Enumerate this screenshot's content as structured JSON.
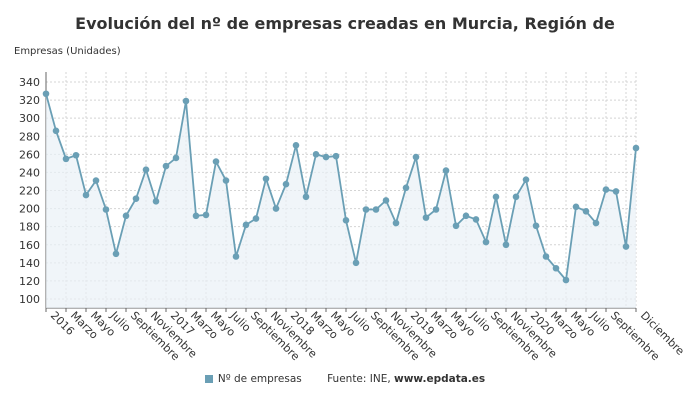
{
  "chart_data": {
    "type": "line",
    "title": "Evolución del nº de empresas creadas en Murcia, Región de",
    "ylabel": "Empresas (Unidades)",
    "xlabel": "",
    "ylim": [
      100,
      340
    ],
    "yticks": [
      100,
      120,
      140,
      160,
      180,
      200,
      220,
      240,
      260,
      280,
      300,
      320,
      340
    ],
    "grid": true,
    "legend_position": "bottom",
    "series_color": "#6a9fb5",
    "x_tick_labels": [
      "2016",
      "Marzo",
      "Mayo",
      "Julio",
      "Septiembre",
      "Noviembre",
      "2017",
      "Marzo",
      "Mayo",
      "Julio",
      "Septiembre",
      "Noviembre",
      "2018",
      "Marzo",
      "Mayo",
      "Julio",
      "Septiembre",
      "Noviembre",
      "2019",
      "Marzo",
      "Mayo",
      "Julio",
      "Septiembre",
      "Noviembre",
      "2020",
      "Marzo",
      "Mayo",
      "Julio",
      "Septiembre",
      "Diciembre"
    ],
    "series": [
      {
        "name": "Nº de empresas",
        "values": [
          327,
          286,
          255,
          259,
          215,
          231,
          199,
          150,
          192,
          211,
          243,
          208,
          247,
          256,
          319,
          192,
          193,
          252,
          231,
          147,
          182,
          189,
          233,
          200,
          227,
          270,
          213,
          260,
          257,
          258,
          187,
          140,
          199,
          199,
          209,
          184,
          223,
          257,
          190,
          199,
          242,
          181,
          192,
          188,
          163,
          213,
          160,
          213,
          232,
          181,
          147,
          134,
          121,
          202,
          197,
          184,
          221,
          219,
          158,
          267
        ]
      }
    ]
  },
  "footer": {
    "legend_label": "Nº de empresas",
    "source_prefix": "Fuente: INE, ",
    "source_site": "www.epdata.es"
  }
}
